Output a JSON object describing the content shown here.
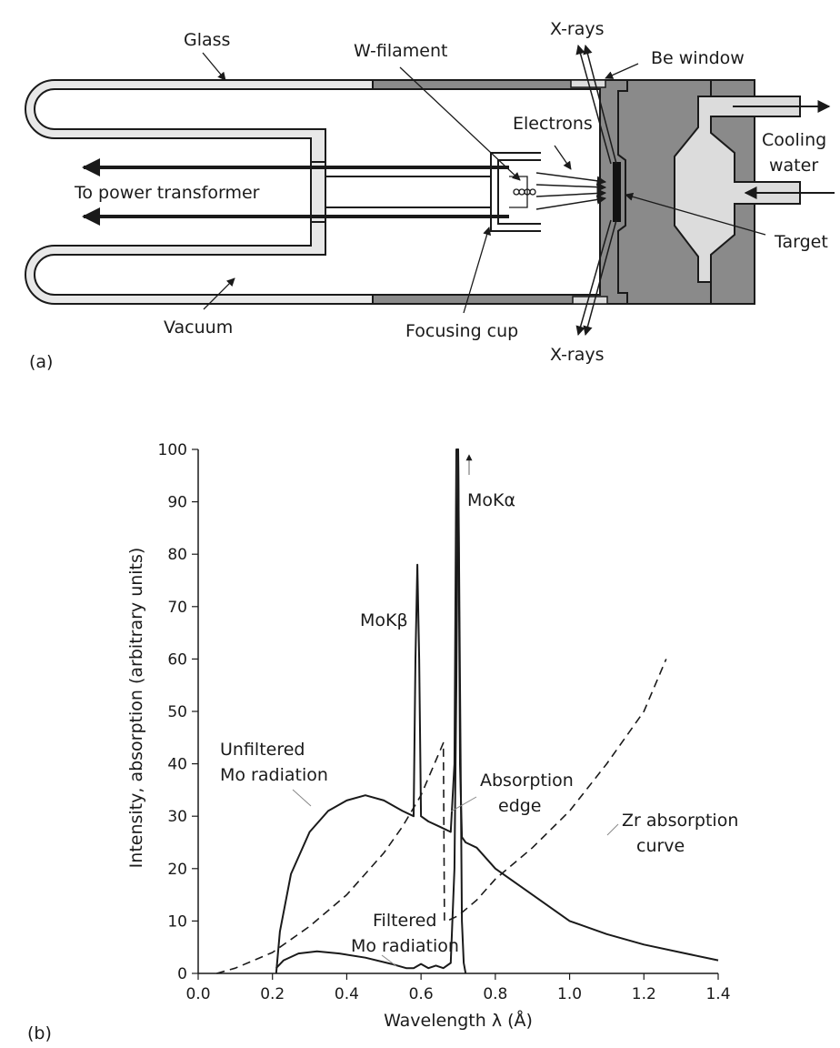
{
  "panel_a": {
    "panel_label": "(a)",
    "labels": {
      "glass": "Glass",
      "w_filament": "W-filament",
      "xrays_top": "X-rays",
      "be_window": "Be window",
      "electrons": "Electrons",
      "cooling_water_1": "Cooling",
      "cooling_water_2": "water",
      "power_transformer": "To power transformer",
      "target": "Target",
      "vacuum": "Vacuum",
      "focusing_cup": "Focusing cup",
      "xrays_bottom": "X-rays"
    },
    "colors": {
      "metal": "#8a8a8a",
      "glass": "#e8e8e8",
      "water": "#dcdcdc",
      "ink": "#1a1a1a"
    }
  },
  "panel_b": {
    "panel_label": "(b)",
    "chart_data": {
      "type": "line",
      "title": "",
      "xlabel": "Wavelength λ (Å)",
      "ylabel": "Intensity, absorption (arbitrary units)",
      "xlim": [
        0.0,
        1.4
      ],
      "ylim": [
        0,
        100
      ],
      "xticks": [
        "0.0",
        "0.2",
        "0.4",
        "0.6",
        "0.8",
        "1.0",
        "1.2",
        "1.4"
      ],
      "yticks": [
        "0",
        "10",
        "20",
        "30",
        "40",
        "50",
        "60",
        "70",
        "80",
        "90",
        "100"
      ],
      "grid": false,
      "series": [
        {
          "style": "solid",
          "x": [
            0.21,
            0.22,
            0.25,
            0.3,
            0.35,
            0.4,
            0.45,
            0.5,
            0.55,
            0.58,
            0.585,
            0.59,
            0.595,
            0.6,
            0.62,
            0.65,
            0.68,
            0.69,
            0.695,
            0.7,
            0.705,
            0.71,
            0.72,
            0.75,
            0.8,
            0.9,
            1.0,
            1.1,
            1.2,
            1.3,
            1.4
          ],
          "y": [
            0,
            8,
            19,
            27,
            31,
            33,
            34,
            33,
            31,
            30,
            60,
            78,
            60,
            30,
            29,
            28,
            27,
            40,
            100,
            100,
            40,
            26,
            25,
            24,
            20,
            15,
            10,
            7.5,
            5.5,
            4,
            2.5
          ]
        },
        {
          "style": "solid",
          "x": [
            0.21,
            0.23,
            0.27,
            0.32,
            0.38,
            0.45,
            0.52,
            0.56,
            0.58,
            0.6,
            0.62,
            0.64,
            0.66,
            0.68,
            0.69,
            0.695,
            0.7,
            0.705,
            0.71,
            0.715,
            0.72
          ],
          "y": [
            1,
            2.5,
            3.8,
            4.2,
            3.8,
            3,
            1.8,
            1,
            1,
            1.8,
            1,
            1.5,
            1,
            2,
            20,
            55,
            100,
            55,
            10,
            2,
            0
          ]
        },
        {
          "style": "dashed",
          "x": [
            0.05,
            0.1,
            0.2,
            0.3,
            0.4,
            0.5,
            0.55,
            0.6,
            0.63,
            0.66,
            0.663,
            0.67,
            0.7,
            0.75,
            0.8,
            0.9,
            1.0,
            1.1,
            1.2,
            1.26
          ],
          "y": [
            0,
            1,
            4,
            9,
            15,
            23,
            28,
            34,
            39,
            44,
            10,
            10,
            11,
            14,
            18,
            24,
            31,
            40,
            50,
            60
          ]
        }
      ],
      "annotations": {
        "mokalpha": "MoKα",
        "mokbeta": "MoKβ",
        "unfiltered_1": "Unfiltered",
        "unfiltered_2": "Mo radiation",
        "absorption_1": "Absorption",
        "absorption_2": "edge",
        "zr_1": "Zr absorption",
        "zr_2": "curve",
        "filtered_1": "Filtered",
        "filtered_2": "Mo radiation"
      }
    }
  }
}
